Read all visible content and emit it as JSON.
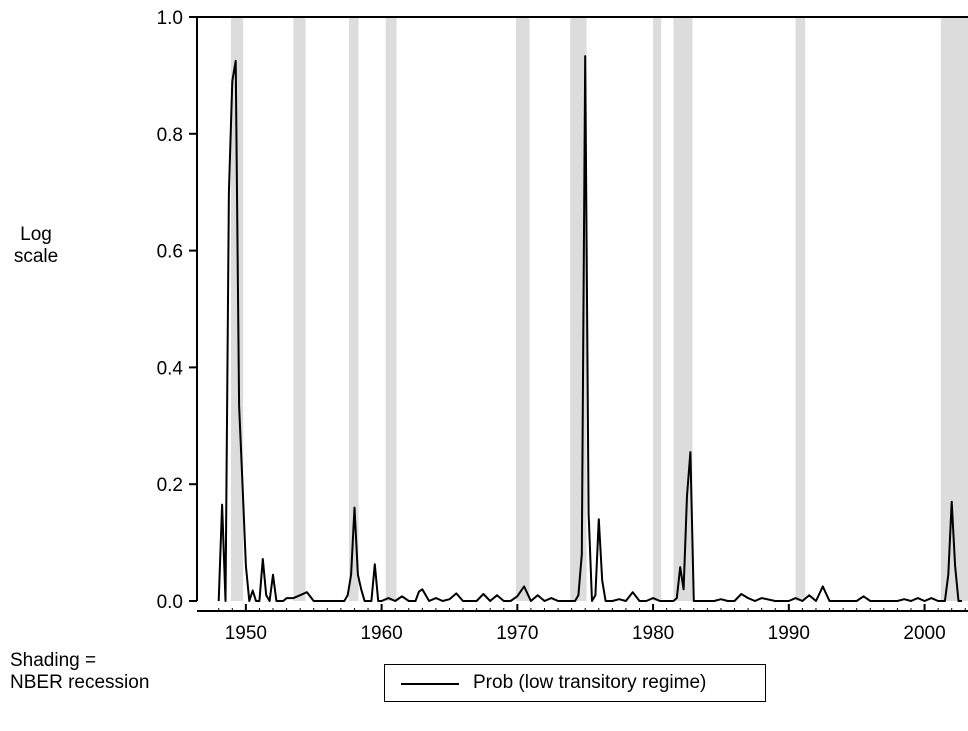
{
  "side_note": {
    "line1": "Log",
    "line2": "scale"
  },
  "shading_note": {
    "line1": "Shading =",
    "line2": "NBER recession"
  },
  "colors": {
    "line": "#000000",
    "recession": "#dcdcdc",
    "axis": "#000000"
  },
  "chart_data": {
    "type": "line",
    "title": "",
    "xlabel": "",
    "ylabel": "Log scale",
    "xlim": [
      1946.4,
      2003.2
    ],
    "ylim": [
      0.0,
      1.0
    ],
    "xticks": [
      "1950",
      "1960",
      "1970",
      "1980",
      "1990",
      "2000"
    ],
    "yticks": [
      "0.0",
      "0.2",
      "0.4",
      "0.6",
      "0.8",
      "1.0"
    ],
    "shaded_note": "Shading = NBER recession",
    "recessions": [
      [
        1948.9,
        1949.8
      ],
      [
        1953.5,
        1954.4
      ],
      [
        1957.6,
        1958.3
      ],
      [
        1960.3,
        1961.1
      ],
      [
        1969.9,
        1970.9
      ],
      [
        1973.9,
        1975.1
      ],
      [
        1980.0,
        1980.6
      ],
      [
        1981.5,
        1982.9
      ],
      [
        1990.5,
        1991.2
      ],
      [
        2001.2,
        2003.2
      ]
    ],
    "series": [
      {
        "name": "Prob (low transitory regime)",
        "x": [
          1948.0,
          1948.25,
          1948.5,
          1948.75,
          1949.0,
          1949.25,
          1949.5,
          1949.75,
          1950.0,
          1950.25,
          1950.5,
          1950.75,
          1951.0,
          1951.25,
          1951.5,
          1951.75,
          1952.0,
          1952.25,
          1952.5,
          1952.75,
          1953.0,
          1953.5,
          1954.0,
          1954.5,
          1955.0,
          1955.5,
          1956.0,
          1956.5,
          1957.0,
          1957.25,
          1957.5,
          1957.75,
          1958.0,
          1958.25,
          1958.5,
          1958.75,
          1959.0,
          1959.25,
          1959.5,
          1959.75,
          1960.0,
          1960.5,
          1961.0,
          1961.5,
          1962.0,
          1962.5,
          1962.75,
          1963.0,
          1963.5,
          1964.0,
          1964.5,
          1965.0,
          1965.5,
          1966.0,
          1966.5,
          1967.0,
          1967.5,
          1968.0,
          1968.5,
          1969.0,
          1969.5,
          1970.0,
          1970.5,
          1971.0,
          1971.5,
          1972.0,
          1972.5,
          1973.0,
          1973.5,
          1974.0,
          1974.25,
          1974.5,
          1974.75,
          1975.0,
          1975.25,
          1975.5,
          1975.75,
          1976.0,
          1976.25,
          1976.5,
          1976.75,
          1977.0,
          1977.5,
          1978.0,
          1978.5,
          1979.0,
          1979.5,
          1980.0,
          1980.5,
          1981.0,
          1981.5,
          1981.75,
          1982.0,
          1982.25,
          1982.5,
          1982.75,
          1983.0,
          1983.5,
          1984.0,
          1984.5,
          1985.0,
          1985.5,
          1986.0,
          1986.5,
          1987.0,
          1987.5,
          1988.0,
          1989.0,
          1990.0,
          1990.5,
          1991.0,
          1991.5,
          1992.0,
          1992.5,
          1993.0,
          1994.0,
          1995.0,
          1995.5,
          1996.0,
          1997.0,
          1998.0,
          1998.5,
          1999.0,
          1999.5,
          2000.0,
          2000.5,
          2001.0,
          2001.5,
          2001.75,
          2002.0,
          2002.25,
          2002.5,
          2002.75
        ],
        "values": [
          0.0,
          0.165,
          0.0,
          0.7,
          0.89,
          0.925,
          0.335,
          0.2,
          0.06,
          0.0,
          0.018,
          0.0,
          0.0,
          0.072,
          0.01,
          0.0,
          0.045,
          0.0,
          0.0,
          0.0,
          0.005,
          0.005,
          0.01,
          0.015,
          0.0,
          0.0,
          0.0,
          0.0,
          0.0,
          0.0,
          0.01,
          0.045,
          0.16,
          0.045,
          0.02,
          0.0,
          0.0,
          0.0,
          0.063,
          0.0,
          0.0,
          0.005,
          0.0,
          0.008,
          0.0,
          0.0,
          0.016,
          0.02,
          0.0,
          0.005,
          0.0,
          0.003,
          0.013,
          0.0,
          0.0,
          0.0,
          0.012,
          0.0,
          0.01,
          0.0,
          0.0,
          0.008,
          0.025,
          0.0,
          0.01,
          0.0,
          0.005,
          0.0,
          0.0,
          0.0,
          0.0,
          0.01,
          0.08,
          0.933,
          0.15,
          0.0,
          0.01,
          0.14,
          0.035,
          0.0,
          0.0,
          0.0,
          0.003,
          0.0,
          0.015,
          0.0,
          0.0,
          0.005,
          0.0,
          0.0,
          0.0,
          0.005,
          0.058,
          0.02,
          0.18,
          0.255,
          0.0,
          0.0,
          0.0,
          0.0,
          0.003,
          0.0,
          0.0,
          0.012,
          0.005,
          0.0,
          0.005,
          0.0,
          0.0,
          0.005,
          0.0,
          0.01,
          0.0,
          0.025,
          0.0,
          0.0,
          0.0,
          0.008,
          0.0,
          0.0,
          0.0,
          0.003,
          0.0,
          0.005,
          0.0,
          0.005,
          0.0,
          0.0,
          0.045,
          0.17,
          0.06,
          0.0,
          0.0
        ]
      }
    ]
  }
}
